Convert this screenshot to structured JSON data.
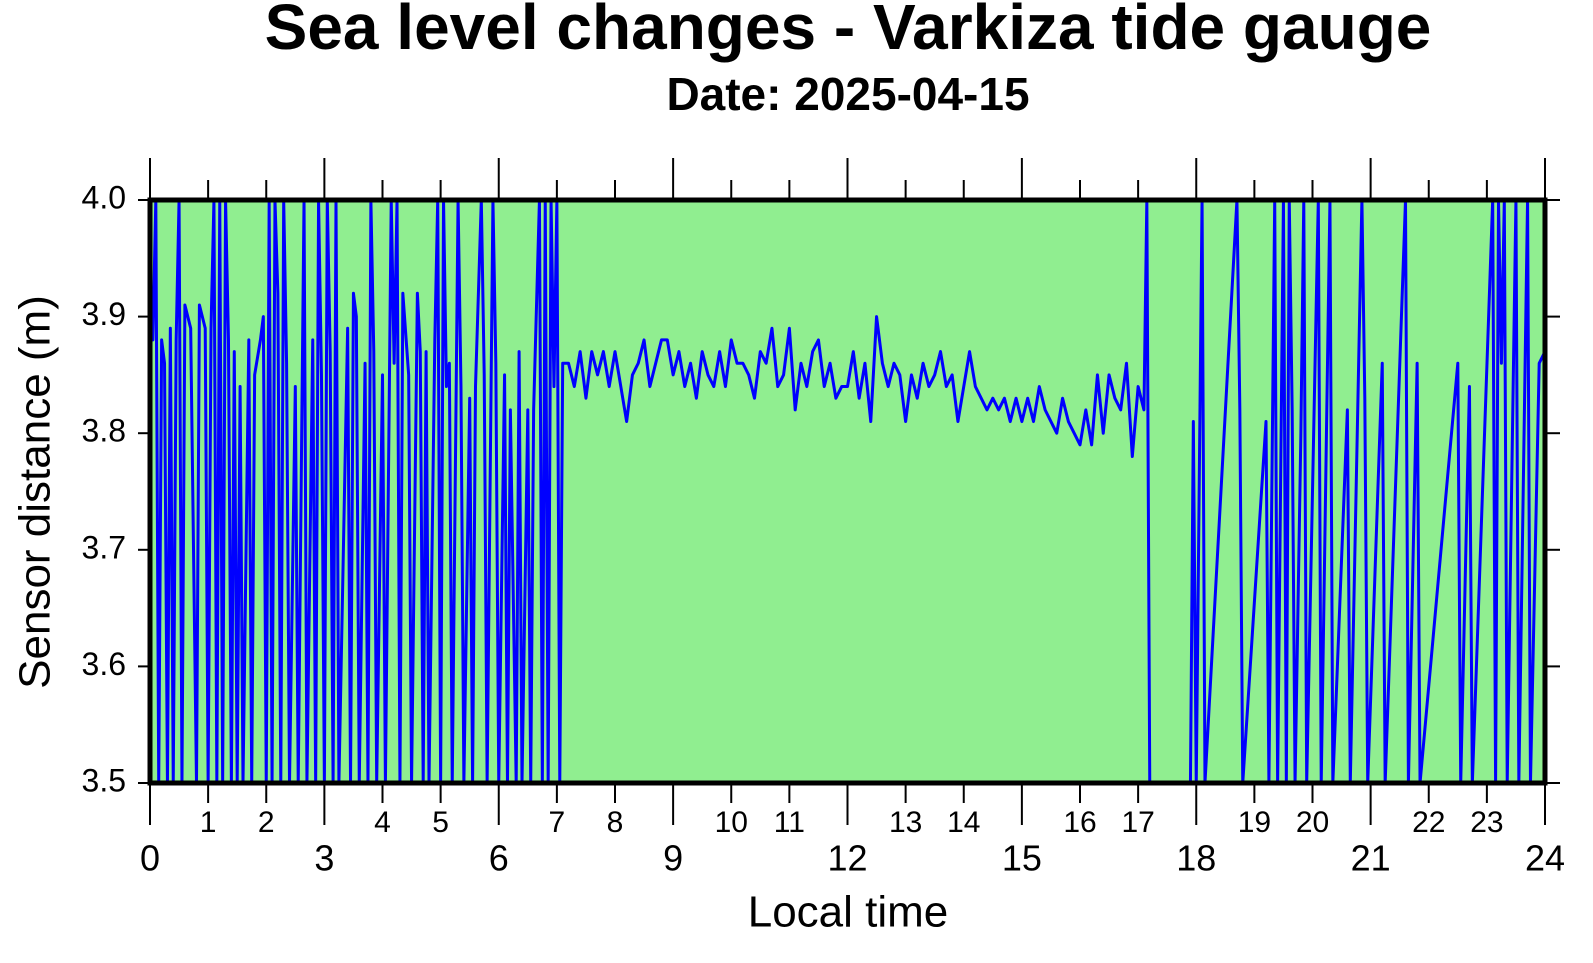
{
  "chart_data": {
    "type": "line",
    "title": "Sea level changes - Varkiza tide gauge",
    "subtitle": "Date: 2025-04-15",
    "x_label": "Local time",
    "y_label": "Sensor distance (m)",
    "background": "#90ee90",
    "xlim": [
      0,
      24
    ],
    "ylim": [
      3.5,
      4
    ],
    "xticks": [
      0,
      3,
      6,
      9,
      12,
      15,
      18,
      21,
      24
    ],
    "xticks_minor": [
      1,
      2,
      4,
      5,
      7,
      8,
      10,
      11,
      13,
      14,
      16,
      17,
      19,
      20,
      22,
      23
    ],
    "yticks": [
      3.5,
      3.6,
      3.7,
      3.8,
      3.9,
      {
        "value": 4,
        "label": "4.0"
      }
    ],
    "x": [
      0,
      0.05,
      0.1,
      0.15,
      0.2,
      0.25,
      0.3,
      0.35,
      0.4,
      0.45,
      0.5,
      0.55,
      0.6,
      0.7,
      0.8,
      0.85,
      0.95,
      1.0,
      1.05,
      1.1,
      1.15,
      1.2,
      1.25,
      1.3,
      1.35,
      1.4,
      1.45,
      1.5,
      1.55,
      1.6,
      1.7,
      1.75,
      1.8,
      1.9,
      1.95,
      2.0,
      2.05,
      2.1,
      2.15,
      2.2,
      2.25,
      2.3,
      2.35,
      2.4,
      2.5,
      2.55,
      2.65,
      2.7,
      2.8,
      2.85,
      2.9,
      2.95,
      3.0,
      3.05,
      3.1,
      3.15,
      3.2,
      3.25,
      3.4,
      3.45,
      3.5,
      3.55,
      3.6,
      3.7,
      3.75,
      3.8,
      3.85,
      3.9,
      4.0,
      4.05,
      4.15,
      4.2,
      4.25,
      4.3,
      4.35,
      4.45,
      4.5,
      4.6,
      4.65,
      4.7,
      4.75,
      4.8,
      4.9,
      4.95,
      5.0,
      5.05,
      5.1,
      5.15,
      5.2,
      5.3,
      5.35,
      5.4,
      5.5,
      5.55,
      5.6,
      5.7,
      5.75,
      5.8,
      5.9,
      5.95,
      6.0,
      6.1,
      6.15,
      6.2,
      6.3,
      6.35,
      6.4,
      6.5,
      6.55,
      6.6,
      6.7,
      6.75,
      6.8,
      6.85,
      6.9,
      6.95,
      7.0,
      7.05,
      7.1,
      7.2,
      7.3,
      7.4,
      7.5,
      7.6,
      7.7,
      7.8,
      7.9,
      8.0,
      8.1,
      8.2,
      8.3,
      8.4,
      8.5,
      8.6,
      8.7,
      8.8,
      8.9,
      9.0,
      9.1,
      9.2,
      9.3,
      9.4,
      9.5,
      9.6,
      9.7,
      9.8,
      9.9,
      10.0,
      10.1,
      10.2,
      10.3,
      10.4,
      10.5,
      10.6,
      10.7,
      10.8,
      10.9,
      11.0,
      11.1,
      11.2,
      11.3,
      11.4,
      11.5,
      11.6,
      11.7,
      11.8,
      11.9,
      12.0,
      12.1,
      12.2,
      12.3,
      12.4,
      12.5,
      12.6,
      12.7,
      12.8,
      12.9,
      13.0,
      13.1,
      13.2,
      13.3,
      13.4,
      13.5,
      13.6,
      13.7,
      13.8,
      13.9,
      14.0,
      14.1,
      14.2,
      14.3,
      14.4,
      14.5,
      14.6,
      14.7,
      14.8,
      14.9,
      15.0,
      15.1,
      15.2,
      15.3,
      15.4,
      15.5,
      15.6,
      15.7,
      15.8,
      15.9,
      16.0,
      16.1,
      16.2,
      16.3,
      16.4,
      16.5,
      16.6,
      16.7,
      16.8,
      16.9,
      17.0,
      17.1,
      17.15,
      17.2,
      17.9,
      17.95,
      18.0,
      18.1,
      18.15,
      18.7,
      18.75,
      18.8,
      19.2,
      19.25,
      19.35,
      19.4,
      19.5,
      19.55,
      19.6,
      19.65,
      19.7,
      19.8,
      19.85,
      19.9,
      20.1,
      20.15,
      20.3,
      20.35,
      20.6,
      20.65,
      20.85,
      20.9,
      20.95,
      21.2,
      21.25,
      21.6,
      21.65,
      21.8,
      21.85,
      22.5,
      22.55,
      22.7,
      22.75,
      23.1,
      23.15,
      23.2,
      23.25,
      23.3,
      23.35,
      23.5,
      23.55,
      23.7,
      23.75,
      23.9,
      24.0
    ],
    "series": [
      {
        "color": "#0000ff",
        "values": [
          3.89,
          3.88,
          4.0,
          3.5,
          3.88,
          3.86,
          3.5,
          3.89,
          3.5,
          3.88,
          4.0,
          3.5,
          3.91,
          3.89,
          3.5,
          3.91,
          3.89,
          3.5,
          3.89,
          4.0,
          3.5,
          4.0,
          3.5,
          4.0,
          3.88,
          3.5,
          3.87,
          3.5,
          3.84,
          3.5,
          3.88,
          3.5,
          3.85,
          3.88,
          3.9,
          3.5,
          4.0,
          3.5,
          4.0,
          3.92,
          3.5,
          4.0,
          3.86,
          3.5,
          3.84,
          3.5,
          4.0,
          3.5,
          3.88,
          3.5,
          4.0,
          3.85,
          3.5,
          4.0,
          3.87,
          3.5,
          4.0,
          3.5,
          3.89,
          3.5,
          3.92,
          3.9,
          3.5,
          3.86,
          3.5,
          4.0,
          3.87,
          3.5,
          3.85,
          3.5,
          4.0,
          3.86,
          4.0,
          3.5,
          3.92,
          3.85,
          3.5,
          3.92,
          3.87,
          3.5,
          3.87,
          3.5,
          3.88,
          4.0,
          3.5,
          4.0,
          3.84,
          3.86,
          3.5,
          4.0,
          3.84,
          3.5,
          3.83,
          3.5,
          3.84,
          4.0,
          3.85,
          3.5,
          4.0,
          3.86,
          3.5,
          3.85,
          3.5,
          3.82,
          3.5,
          3.87,
          3.5,
          3.82,
          3.5,
          3.82,
          4.0,
          3.5,
          4.0,
          3.5,
          4.0,
          3.84,
          4.0,
          3.5,
          3.86,
          3.86,
          3.84,
          3.87,
          3.83,
          3.87,
          3.85,
          3.87,
          3.84,
          3.87,
          3.84,
          3.81,
          3.85,
          3.86,
          3.88,
          3.84,
          3.86,
          3.88,
          3.88,
          3.85,
          3.87,
          3.84,
          3.86,
          3.83,
          3.87,
          3.85,
          3.84,
          3.87,
          3.84,
          3.88,
          3.86,
          3.86,
          3.85,
          3.83,
          3.87,
          3.86,
          3.89,
          3.84,
          3.85,
          3.89,
          3.82,
          3.86,
          3.84,
          3.87,
          3.88,
          3.84,
          3.86,
          3.83,
          3.84,
          3.84,
          3.87,
          3.83,
          3.86,
          3.81,
          3.9,
          3.86,
          3.84,
          3.86,
          3.85,
          3.81,
          3.85,
          3.83,
          3.86,
          3.84,
          3.85,
          3.87,
          3.84,
          3.85,
          3.81,
          3.84,
          3.87,
          3.84,
          3.83,
          3.82,
          3.83,
          3.82,
          3.83,
          3.81,
          3.83,
          3.81,
          3.83,
          3.81,
          3.84,
          3.82,
          3.81,
          3.8,
          3.83,
          3.81,
          3.8,
          3.79,
          3.82,
          3.79,
          3.85,
          3.8,
          3.85,
          3.83,
          3.82,
          3.86,
          3.78,
          3.84,
          3.82,
          4.0,
          3.5,
          3.5,
          3.81,
          3.5,
          4.0,
          3.5,
          4.0,
          3.82,
          3.5,
          3.81,
          3.5,
          4.0,
          3.5,
          4.0,
          3.5,
          4.0,
          3.82,
          3.5,
          3.8,
          4.0,
          3.5,
          4.0,
          3.5,
          4.0,
          3.5,
          3.82,
          3.5,
          4.0,
          3.83,
          3.5,
          3.86,
          3.5,
          4.0,
          3.5,
          3.86,
          3.5,
          3.86,
          3.5,
          3.84,
          3.5,
          4.0,
          3.5,
          4.0,
          3.86,
          4.0,
          3.5,
          4.0,
          3.5,
          4.0,
          3.5,
          3.86,
          3.87
        ]
      }
    ]
  }
}
